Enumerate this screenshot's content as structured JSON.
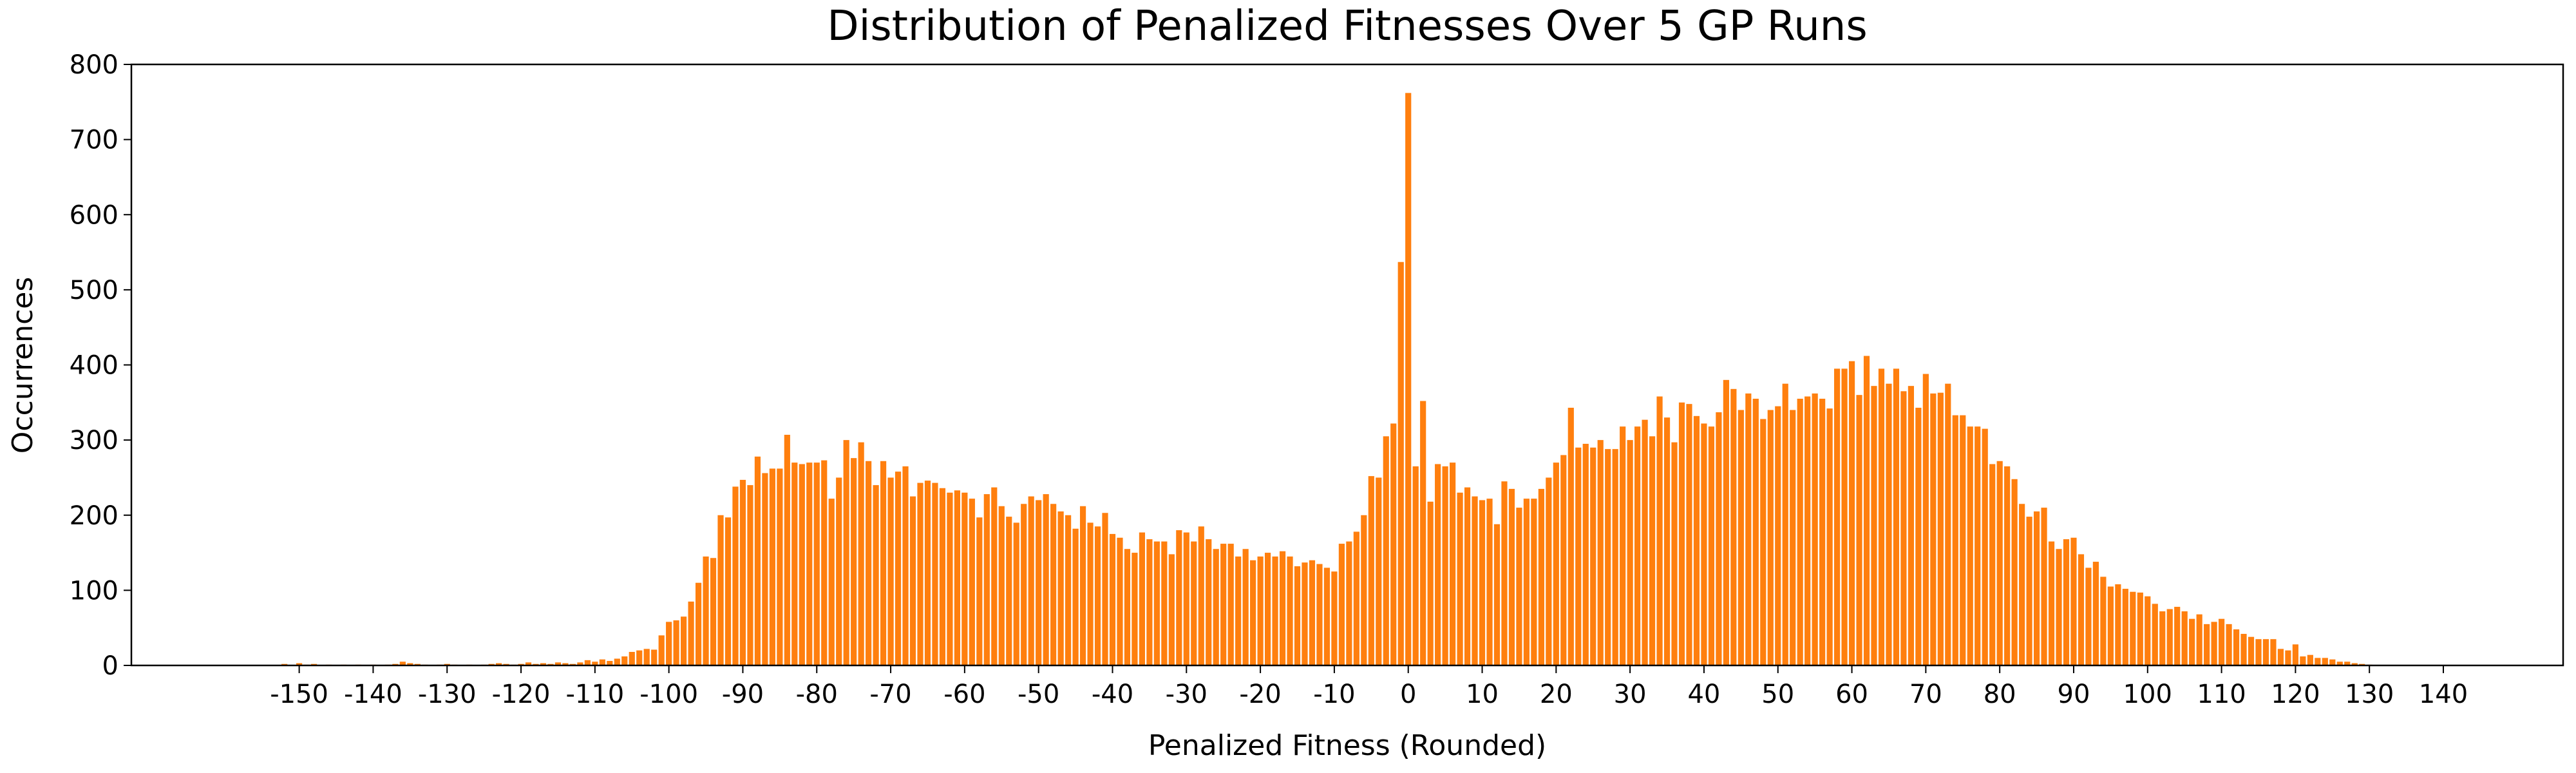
{
  "chart_data": {
    "type": "bar",
    "title": "Distribution of Penalized Fitnesses Over 5 GP Runs",
    "xlabel": "Penalized Fitness (Rounded)",
    "ylabel": "Occurrences",
    "color": "#ff7f0e",
    "x": [
      -152,
      -151,
      -150,
      -149,
      -148,
      -147,
      -146,
      -145,
      -144,
      -143,
      -142,
      -141,
      -140,
      -139,
      -138,
      -137,
      -136,
      -135,
      -134,
      -133,
      -132,
      -131,
      -130,
      -129,
      -128,
      -127,
      -126,
      -125,
      -124,
      -123,
      -122,
      -121,
      -120,
      -119,
      -118,
      -117,
      -116,
      -115,
      -114,
      -113,
      -112,
      -111,
      -110,
      -109,
      -108,
      -107,
      -106,
      -105,
      -104,
      -103,
      -102,
      -101,
      -100,
      -99,
      -98,
      -97,
      -96,
      -95,
      -94,
      -93,
      -92,
      -91,
      -90,
      -89,
      -88,
      -87,
      -86,
      -85,
      -84,
      -83,
      -82,
      -81,
      -80,
      -79,
      -78,
      -77,
      -76,
      -75,
      -74,
      -73,
      -72,
      -71,
      -70,
      -69,
      -68,
      -67,
      -66,
      -65,
      -64,
      -63,
      -62,
      -61,
      -60,
      -59,
      -58,
      -57,
      -56,
      -55,
      -54,
      -53,
      -52,
      -51,
      -50,
      -49,
      -48,
      -47,
      -46,
      -45,
      -44,
      -43,
      -42,
      -41,
      -40,
      -39,
      -38,
      -37,
      -36,
      -35,
      -34,
      -33,
      -32,
      -31,
      -30,
      -29,
      -28,
      -27,
      -26,
      -25,
      -24,
      -23,
      -22,
      -21,
      -20,
      -19,
      -18,
      -17,
      -16,
      -15,
      -14,
      -13,
      -12,
      -11,
      -10,
      -9,
      -8,
      -7,
      -6,
      -5,
      -4,
      -3,
      -2,
      -1,
      0,
      1,
      2,
      3,
      4,
      5,
      6,
      7,
      8,
      9,
      10,
      11,
      12,
      13,
      14,
      15,
      16,
      17,
      18,
      19,
      20,
      21,
      22,
      23,
      24,
      25,
      26,
      27,
      28,
      29,
      30,
      31,
      32,
      33,
      34,
      35,
      36,
      37,
      38,
      39,
      40,
      41,
      42,
      43,
      44,
      45,
      46,
      47,
      48,
      49,
      50,
      51,
      52,
      53,
      54,
      55,
      56,
      57,
      58,
      59,
      60,
      61,
      62,
      63,
      64,
      65,
      66,
      67,
      68,
      69,
      70,
      71,
      72,
      73,
      74,
      75,
      76,
      77,
      78,
      79,
      80,
      81,
      82,
      83,
      84,
      85,
      86,
      87,
      88,
      89,
      90,
      91,
      92,
      93,
      94,
      95,
      96,
      97,
      98,
      99,
      100,
      101,
      102,
      103,
      104,
      105,
      106,
      107,
      108,
      109,
      110,
      111,
      112,
      113,
      114,
      115,
      116,
      117,
      118,
      119,
      120,
      121,
      122,
      123,
      124,
      125,
      126,
      127,
      128,
      129,
      130
    ],
    "values": [
      2,
      0,
      3,
      1,
      2,
      0,
      1,
      0,
      1,
      0,
      1,
      0,
      1,
      0,
      1,
      2,
      5,
      3,
      2,
      1,
      0,
      1,
      2,
      1,
      0,
      1,
      0,
      1,
      2,
      3,
      2,
      1,
      2,
      4,
      2,
      3,
      2,
      4,
      3,
      2,
      4,
      7,
      5,
      8,
      6,
      9,
      12,
      18,
      20,
      22,
      21,
      40,
      58,
      60,
      65,
      85,
      110,
      145,
      143,
      200,
      197,
      238,
      247,
      240,
      278,
      256,
      262,
      262,
      307,
      270,
      268,
      270,
      270,
      273,
      222,
      250,
      300,
      276,
      297,
      272,
      240,
      272,
      250,
      258,
      265,
      225,
      243,
      246,
      243,
      236,
      230,
      233,
      230,
      222,
      197,
      228,
      237,
      212,
      198,
      190,
      215,
      225,
      220,
      228,
      215,
      205,
      200,
      182,
      212,
      190,
      185,
      203,
      175,
      170,
      155,
      150,
      177,
      168,
      165,
      165,
      148,
      180,
      177,
      165,
      185,
      168,
      155,
      162,
      162,
      145,
      155,
      140,
      145,
      150,
      145,
      152,
      145,
      132,
      137,
      140,
      135,
      130,
      125,
      162,
      165,
      178,
      200,
      252,
      250,
      305,
      322,
      537,
      762,
      265,
      352,
      218,
      268,
      265,
      270,
      230,
      237,
      225,
      220,
      222,
      188,
      245,
      235,
      210,
      222,
      222,
      235,
      250,
      270,
      280,
      343,
      290,
      295,
      290,
      300,
      288,
      288,
      318,
      300,
      318,
      327,
      305,
      358,
      330,
      297,
      350,
      348,
      332,
      322,
      318,
      337,
      380,
      368,
      340,
      362,
      355,
      328,
      340,
      345,
      375,
      340,
      355,
      358,
      362,
      355,
      342,
      395,
      395,
      405,
      360,
      412,
      372,
      395,
      375,
      395,
      365,
      372,
      343,
      388,
      362,
      363,
      375,
      333,
      333,
      318,
      318,
      315,
      268,
      272,
      265,
      248,
      215,
      198,
      205,
      210,
      165,
      155,
      168,
      170,
      148,
      130,
      138,
      118,
      105,
      108,
      102,
      98,
      97,
      92,
      82,
      72,
      75,
      78,
      72,
      62,
      68,
      55,
      58,
      62,
      55,
      48,
      42,
      38,
      35,
      35,
      35,
      22,
      20,
      28,
      12,
      14,
      10,
      10,
      8,
      5,
      5,
      3,
      2,
      1
    ],
    "xlim": [
      -172.7,
      156.2
    ],
    "xticks": [
      -150,
      -140,
      -130,
      -120,
      -110,
      -100,
      -90,
      -80,
      -70,
      -60,
      -50,
      -40,
      -30,
      -20,
      -10,
      0,
      10,
      20,
      30,
      40,
      50,
      60,
      70,
      80,
      90,
      100,
      110,
      120,
      130,
      140
    ],
    "ylim": [
      0,
      800
    ],
    "yticks": [
      0,
      100,
      200,
      300,
      400,
      500,
      600,
      700,
      800
    ]
  }
}
